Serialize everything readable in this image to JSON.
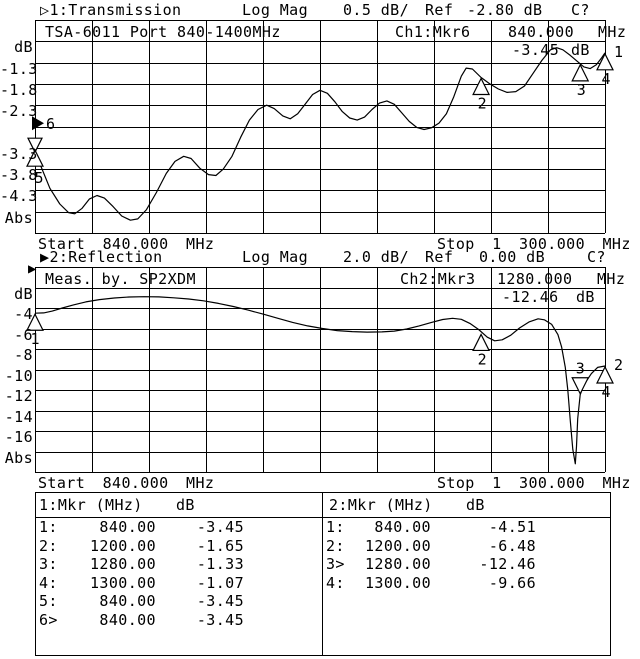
{
  "colors": {
    "fg": "#000000",
    "bg": "#ffffff"
  },
  "chart1": {
    "title": {
      "indicator": "▷",
      "name": "1:Transmission",
      "mode": "Log Mag",
      "scale": "0.5 dB/",
      "ref_label": "Ref",
      "ref_value": "-2.80 dB",
      "cal": "C?"
    },
    "header": {
      "left": "TSA-6011 Port 840-1400MHz",
      "channel": "Ch1:Mkr6",
      "freq": "840.000",
      "freq_unit": "MHz",
      "value": "-3.45",
      "value_unit": "dB"
    },
    "y_labels": [
      {
        "line": 1,
        "text": "dB"
      },
      {
        "line": 2,
        "text": "-1.3"
      },
      {
        "line": 3,
        "text": "-1.8"
      },
      {
        "line": 4,
        "text": "-2.3"
      },
      {
        "line": 6,
        "text": "-3.3"
      },
      {
        "line": 7,
        "text": "-3.8"
      },
      {
        "line": 8,
        "text": "-4.3"
      },
      {
        "line": 9,
        "text": "Abs"
      }
    ],
    "start": "Start 840.000 MHz",
    "stop": "Stop 1 300.000 MHz"
  },
  "chart2": {
    "title": {
      "indicator": "▶",
      "name": "2:Reflection",
      "mode": "Log Mag",
      "scale": "2.0 dB/",
      "ref_label": "Ref",
      "ref_value": "0.00 dB",
      "cal": "C?"
    },
    "header": {
      "left": "Meas. by. SP2XDM",
      "channel": "Ch2:Mkr3",
      "freq": "1280.000",
      "freq_unit": "MHz",
      "value": "-12.46",
      "value_unit": "dB"
    },
    "y_labels": [
      {
        "line": 1,
        "text": "dB"
      },
      {
        "line": 2,
        "text": "-4"
      },
      {
        "line": 3,
        "text": "-6"
      },
      {
        "line": 4,
        "text": "-8"
      },
      {
        "line": 5,
        "text": "-10"
      },
      {
        "line": 6,
        "text": "-12"
      },
      {
        "line": 7,
        "text": "-14"
      },
      {
        "line": 8,
        "text": "-16"
      },
      {
        "line": 9,
        "text": "Abs"
      }
    ],
    "start": "Start 840.000 MHz",
    "stop": "Stop 1 300.000 MHz",
    "active_channel_indicator": "▶"
  },
  "chart_data": [
    {
      "type": "line",
      "title": "1:Transmission",
      "ylabel": "dB",
      "x_unit": "MHz",
      "xlim": [
        840,
        1300
      ],
      "ylim": [
        -5.3,
        -0.3
      ],
      "db_per_div": 0.5,
      "ref_db": -2.8,
      "grid": true,
      "points": [
        [
          840,
          -3.45
        ],
        [
          845,
          -3.75
        ],
        [
          852,
          -4.25
        ],
        [
          860,
          -4.62
        ],
        [
          867,
          -4.82
        ],
        [
          872,
          -4.85
        ],
        [
          878,
          -4.72
        ],
        [
          884,
          -4.5
        ],
        [
          890,
          -4.42
        ],
        [
          896,
          -4.48
        ],
        [
          903,
          -4.68
        ],
        [
          910,
          -4.9
        ],
        [
          917,
          -5.0
        ],
        [
          923,
          -4.97
        ],
        [
          930,
          -4.75
        ],
        [
          938,
          -4.35
        ],
        [
          946,
          -3.9
        ],
        [
          953,
          -3.62
        ],
        [
          960,
          -3.5
        ],
        [
          966,
          -3.55
        ],
        [
          973,
          -3.78
        ],
        [
          980,
          -3.93
        ],
        [
          986,
          -3.95
        ],
        [
          992,
          -3.8
        ],
        [
          999,
          -3.5
        ],
        [
          1006,
          -3.05
        ],
        [
          1013,
          -2.65
        ],
        [
          1020,
          -2.4
        ],
        [
          1027,
          -2.3
        ],
        [
          1033,
          -2.38
        ],
        [
          1040,
          -2.55
        ],
        [
          1046,
          -2.62
        ],
        [
          1052,
          -2.5
        ],
        [
          1058,
          -2.28
        ],
        [
          1064,
          -2.05
        ],
        [
          1070,
          -1.95
        ],
        [
          1076,
          -2.02
        ],
        [
          1082,
          -2.22
        ],
        [
          1088,
          -2.45
        ],
        [
          1094,
          -2.6
        ],
        [
          1100,
          -2.65
        ],
        [
          1106,
          -2.58
        ],
        [
          1112,
          -2.4
        ],
        [
          1118,
          -2.25
        ],
        [
          1124,
          -2.2
        ],
        [
          1130,
          -2.28
        ],
        [
          1136,
          -2.48
        ],
        [
          1142,
          -2.68
        ],
        [
          1148,
          -2.82
        ],
        [
          1154,
          -2.87
        ],
        [
          1160,
          -2.83
        ],
        [
          1166,
          -2.72
        ],
        [
          1172,
          -2.5
        ],
        [
          1178,
          -2.1
        ],
        [
          1184,
          -1.62
        ],
        [
          1188,
          -1.43
        ],
        [
          1193,
          -1.45
        ],
        [
          1200,
          -1.65
        ],
        [
          1207,
          -1.8
        ],
        [
          1214,
          -1.92
        ],
        [
          1221,
          -2.0
        ],
        [
          1228,
          -1.98
        ],
        [
          1235,
          -1.85
        ],
        [
          1242,
          -1.55
        ],
        [
          1249,
          -1.25
        ],
        [
          1256,
          -1.0
        ],
        [
          1261,
          -0.95
        ],
        [
          1266,
          -1.0
        ],
        [
          1272,
          -1.13
        ],
        [
          1278,
          -1.28
        ],
        [
          1283,
          -1.4
        ],
        [
          1288,
          -1.44
        ],
        [
          1293,
          -1.35
        ],
        [
          1297,
          -1.2
        ],
        [
          1300,
          -1.07
        ]
      ],
      "markers": [
        {
          "label": "6",
          "mhz": 840,
          "db": -3.45,
          "style": "active-edge"
        },
        {
          "label": "5",
          "mhz": 840,
          "db": -3.45,
          "style": "up-label-edge"
        },
        {
          "label": "2",
          "mhz": 1200,
          "db": -1.65,
          "style": "up"
        },
        {
          "label": "3",
          "mhz": 1280,
          "db": -1.33,
          "style": "up"
        },
        {
          "label": "4",
          "mhz": 1300,
          "db": -1.07,
          "style": "up"
        },
        {
          "label": "1",
          "mhz": 1300,
          "db": -1.07,
          "style": "trace-id"
        }
      ]
    },
    {
      "type": "line",
      "title": "2:Reflection",
      "ylabel": "dB",
      "x_unit": "MHz",
      "xlim": [
        840,
        1300
      ],
      "ylim": [
        -20,
        0
      ],
      "db_per_div": 2.0,
      "ref_db": 0.0,
      "grid": true,
      "points": [
        [
          840,
          -4.51
        ],
        [
          847,
          -4.48
        ],
        [
          854,
          -4.3
        ],
        [
          862,
          -4.0
        ],
        [
          871,
          -3.7
        ],
        [
          881,
          -3.4
        ],
        [
          892,
          -3.18
        ],
        [
          904,
          -3.02
        ],
        [
          916,
          -2.93
        ],
        [
          928,
          -2.9
        ],
        [
          940,
          -2.92
        ],
        [
          952,
          -3.0
        ],
        [
          964,
          -3.12
        ],
        [
          976,
          -3.3
        ],
        [
          988,
          -3.55
        ],
        [
          1000,
          -3.85
        ],
        [
          1012,
          -4.2
        ],
        [
          1024,
          -4.6
        ],
        [
          1036,
          -5.0
        ],
        [
          1048,
          -5.4
        ],
        [
          1060,
          -5.75
        ],
        [
          1072,
          -6.0
        ],
        [
          1084,
          -6.2
        ],
        [
          1096,
          -6.3
        ],
        [
          1108,
          -6.35
        ],
        [
          1120,
          -6.33
        ],
        [
          1130,
          -6.25
        ],
        [
          1140,
          -6.05
        ],
        [
          1150,
          -5.75
        ],
        [
          1160,
          -5.4
        ],
        [
          1169,
          -5.12
        ],
        [
          1177,
          -5.0
        ],
        [
          1184,
          -5.1
        ],
        [
          1191,
          -5.5
        ],
        [
          1198,
          -6.1
        ],
        [
          1205,
          -6.85
        ],
        [
          1211,
          -7.2
        ],
        [
          1217,
          -7.1
        ],
        [
          1224,
          -6.65
        ],
        [
          1231,
          -5.95
        ],
        [
          1239,
          -5.35
        ],
        [
          1246,
          -5.05
        ],
        [
          1251,
          -5.15
        ],
        [
          1257,
          -5.6
        ],
        [
          1262,
          -6.6
        ],
        [
          1265,
          -7.8
        ],
        [
          1268,
          -9.8
        ],
        [
          1270,
          -12.0
        ],
        [
          1272,
          -15.0
        ],
        [
          1274,
          -17.8
        ],
        [
          1276,
          -19.2
        ],
        [
          1277,
          -17.5
        ],
        [
          1278,
          -14.8
        ],
        [
          1280,
          -12.46
        ],
        [
          1282,
          -11.8
        ],
        [
          1284,
          -11.3
        ],
        [
          1289,
          -10.4
        ],
        [
          1294,
          -9.8
        ],
        [
          1300,
          -9.66
        ]
      ],
      "markers": [
        {
          "label": "1",
          "mhz": 840,
          "db": -4.51,
          "style": "up-edge"
        },
        {
          "label": "2",
          "mhz": 1200,
          "db": -6.48,
          "style": "up"
        },
        {
          "label": "3",
          "mhz": 1280,
          "db": -12.46,
          "style": "down"
        },
        {
          "label": "4",
          "mhz": 1300,
          "db": -9.66,
          "style": "up"
        },
        {
          "label": "2",
          "mhz": 1300,
          "db": -9.66,
          "style": "trace-id"
        }
      ]
    }
  ],
  "marker_tables": {
    "left": {
      "header_label": "1:Mkr (MHz)",
      "header_unit": "dB",
      "rows": [
        {
          "n": "1:",
          "f": "840.00",
          "v": "-3.45"
        },
        {
          "n": "2:",
          "f": "1200.00",
          "v": "-1.65"
        },
        {
          "n": "3:",
          "f": "1280.00",
          "v": "-1.33"
        },
        {
          "n": "4:",
          "f": "1300.00",
          "v": "-1.07"
        },
        {
          "n": "5:",
          "f": "840.00",
          "v": "-3.45"
        },
        {
          "n": "6>",
          "f": "840.00",
          "v": "-3.45"
        }
      ]
    },
    "right": {
      "header_label": "2:Mkr (MHz)",
      "header_unit": "dB",
      "rows": [
        {
          "n": "1:",
          "f": "840.00",
          "v": "-4.51"
        },
        {
          "n": "2:",
          "f": "1200.00",
          "v": "-6.48"
        },
        {
          "n": "3>",
          "f": "1280.00",
          "v": "-12.46"
        },
        {
          "n": "4:",
          "f": "1300.00",
          "v": "-9.66"
        }
      ]
    }
  }
}
